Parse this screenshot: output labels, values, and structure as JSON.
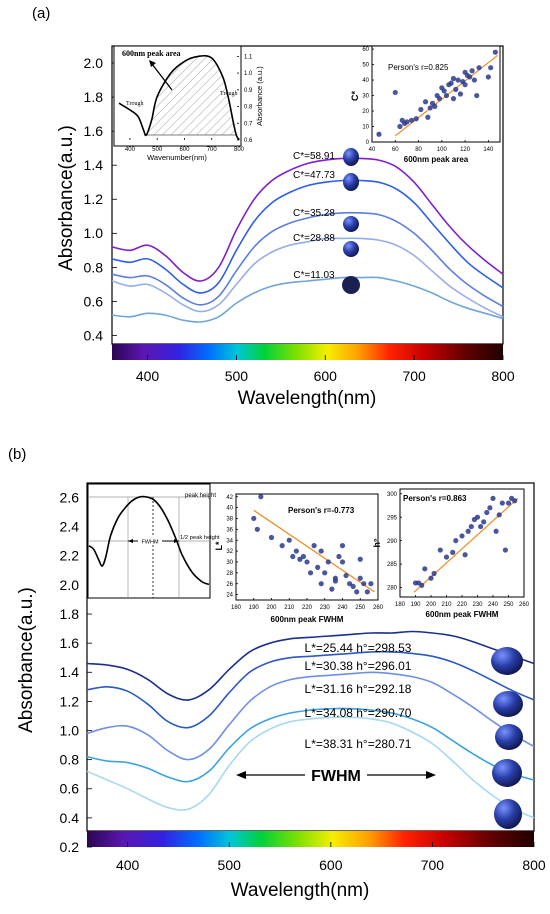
{
  "panel_a": {
    "label": "(a)",
    "tick_texts": {
      "main_x": [
        "400",
        "500",
        "600",
        "700",
        "800"
      ],
      "main_y": [
        "0.4",
        "0.6",
        "0.8",
        "1.0",
        "1.2",
        "1.4",
        "1.6",
        "1.8",
        "2.0"
      ]
    },
    "inset_left": {
      "xlabel": "Wavenumber(nm)",
      "ylabel": "Absorbance (a.u.)",
      "x_ticks": [
        "400",
        "500",
        "600",
        "700",
        "800"
      ],
      "y_ticks": [
        "0.6",
        "0.7",
        "0.8",
        "0.9",
        "1.0",
        "1.1"
      ],
      "area_label": "600nm peak area",
      "trough_left": "Trough",
      "trough_right": "Trough"
    },
    "inset_right": {
      "xlabel": "600nm peak area",
      "ylabel": "C*",
      "annotation": "Person's r=0.825",
      "x_ticks": [
        "40",
        "60",
        "80",
        "100",
        "120",
        "140"
      ],
      "y_ticks": [
        "0",
        "10",
        "20",
        "30",
        "40",
        "50",
        "60"
      ]
    }
  },
  "panel_b": {
    "label": "(b)",
    "tick_texts": {
      "main_x": [
        "400",
        "500",
        "600",
        "700",
        "800"
      ],
      "main_y": [
        "0.2",
        "0.4",
        "0.6",
        "0.8",
        "1.0",
        "1.2",
        "1.4",
        "1.6",
        "1.8",
        "2.0",
        "2.2",
        "2.4",
        "2.6"
      ]
    },
    "fwhm_label": "FWHM",
    "inset_left": {
      "fwhm_small": "FWHM",
      "peak_height": "peak height",
      "half_peak_height": "1/2 peak height"
    },
    "inset_mid": {
      "xlabel": "600nm peak FWHM",
      "ylabel": "L*",
      "annotation": "Person's r=-0.773",
      "x_ticks": [
        "180",
        "190",
        "200",
        "210",
        "220",
        "230",
        "240",
        "250",
        "260"
      ],
      "y_ticks": [
        "24",
        "26",
        "28",
        "30",
        "32",
        "34",
        "36",
        "38",
        "40",
        "42"
      ]
    },
    "inset_right": {
      "xlabel": "600nm peak FWHM",
      "ylabel": "h°",
      "annotation": "Person's r=0.863",
      "x_ticks": [
        "180",
        "190",
        "200",
        "210",
        "220",
        "230",
        "240",
        "250",
        "260"
      ],
      "y_ticks": [
        "280",
        "285",
        "290",
        "295",
        "300"
      ]
    }
  },
  "chart_data": [
    {
      "panel": "(a)",
      "type": "line",
      "xlabel": "Wavelength(nm)",
      "ylabel": "Absorbance(a.u.)",
      "xlim": [
        360,
        800
      ],
      "ylim": [
        0.35,
        2.1
      ],
      "series": [
        {
          "name": "C*=58.91",
          "color": "#7f1fcf",
          "x": [
            360,
            380,
            400,
            420,
            440,
            460,
            480,
            500,
            520,
            540,
            560,
            580,
            600,
            620,
            640,
            660,
            680,
            700,
            720,
            740,
            760,
            780,
            800
          ],
          "y": [
            0.92,
            0.9,
            0.93,
            0.87,
            0.77,
            0.72,
            0.8,
            1.02,
            1.2,
            1.31,
            1.37,
            1.41,
            1.43,
            1.44,
            1.44,
            1.43,
            1.39,
            1.3,
            1.17,
            1.04,
            0.93,
            0.84,
            0.76
          ]
        },
        {
          "name": "C*=47.73",
          "color": "#2f5fe6",
          "x": [
            360,
            380,
            400,
            420,
            440,
            460,
            480,
            500,
            520,
            540,
            560,
            580,
            600,
            620,
            640,
            660,
            680,
            700,
            720,
            740,
            760,
            780,
            800
          ],
          "y": [
            0.85,
            0.83,
            0.85,
            0.79,
            0.7,
            0.65,
            0.71,
            0.9,
            1.07,
            1.18,
            1.24,
            1.28,
            1.3,
            1.31,
            1.31,
            1.3,
            1.26,
            1.18,
            1.06,
            0.94,
            0.83,
            0.75,
            0.68
          ]
        },
        {
          "name": "C*=35.28",
          "color": "#5b7fe0",
          "x": [
            360,
            380,
            400,
            420,
            440,
            460,
            480,
            500,
            520,
            540,
            560,
            580,
            600,
            620,
            640,
            660,
            680,
            700,
            720,
            740,
            760,
            780,
            800
          ],
          "y": [
            0.76,
            0.74,
            0.75,
            0.7,
            0.62,
            0.58,
            0.63,
            0.78,
            0.92,
            1.01,
            1.06,
            1.09,
            1.11,
            1.12,
            1.12,
            1.11,
            1.07,
            1.0,
            0.9,
            0.79,
            0.7,
            0.63,
            0.57
          ]
        },
        {
          "name": "C*=28.88",
          "color": "#98aeea",
          "x": [
            360,
            380,
            400,
            420,
            440,
            460,
            480,
            500,
            520,
            540,
            560,
            580,
            600,
            620,
            640,
            660,
            680,
            700,
            720,
            740,
            760,
            780,
            800
          ],
          "y": [
            0.72,
            0.69,
            0.7,
            0.65,
            0.58,
            0.54,
            0.58,
            0.7,
            0.82,
            0.89,
            0.93,
            0.95,
            0.97,
            0.97,
            0.97,
            0.96,
            0.93,
            0.87,
            0.78,
            0.69,
            0.62,
            0.56,
            0.51
          ]
        },
        {
          "name": "C*=11.03",
          "color": "#6fa6d9",
          "x": [
            360,
            380,
            400,
            420,
            440,
            460,
            480,
            500,
            520,
            540,
            560,
            580,
            600,
            620,
            640,
            660,
            680,
            700,
            720,
            740,
            760,
            780,
            800
          ],
          "y": [
            0.52,
            0.51,
            0.53,
            0.52,
            0.49,
            0.48,
            0.51,
            0.59,
            0.65,
            0.69,
            0.71,
            0.72,
            0.73,
            0.74,
            0.74,
            0.74,
            0.72,
            0.69,
            0.65,
            0.6,
            0.56,
            0.53,
            0.5
          ]
        }
      ]
    },
    {
      "panel": "(a) inset left",
      "type": "line",
      "xlabel": "Wavenumber(nm)",
      "ylabel": "Absorbance (a.u.)",
      "xlim": [
        360,
        800
      ],
      "ylim": [
        0.6,
        1.15
      ],
      "series": [
        {
          "x": [
            360,
            400,
            430,
            450,
            460,
            480,
            500,
            550,
            600,
            650,
            700,
            740,
            760,
            780,
            790,
            800
          ],
          "y": [
            0.82,
            0.78,
            0.74,
            0.66,
            0.63,
            0.72,
            0.86,
            1.0,
            1.07,
            1.1,
            1.09,
            0.98,
            0.86,
            0.7,
            0.63,
            0.6
          ]
        }
      ]
    },
    {
      "panel": "(a) inset right",
      "type": "scatter",
      "xlabel": "600nm peak area",
      "ylabel": "C*",
      "annotation": "Person's r=0.825",
      "xlim": [
        40,
        150
      ],
      "ylim": [
        0,
        62
      ],
      "fit_line": [
        [
          60,
          4
        ],
        [
          148,
          56
        ]
      ],
      "x": [
        46,
        60,
        64,
        66,
        68,
        70,
        74,
        78,
        82,
        86,
        88,
        90,
        92,
        94,
        96,
        98,
        100,
        102,
        104,
        106,
        108,
        110,
        110,
        112,
        114,
        116,
        118,
        120,
        120,
        122,
        124,
        126,
        128,
        130,
        132,
        140,
        142,
        146
      ],
      "y": [
        5,
        32,
        10,
        14,
        12,
        13,
        14,
        15,
        21,
        26,
        16,
        22,
        25,
        23,
        30,
        28,
        35,
        33,
        30,
        37,
        38,
        41,
        28,
        34,
        40,
        31,
        39,
        45,
        37,
        43,
        42,
        46,
        40,
        30,
        48,
        42,
        48,
        58
      ]
    },
    {
      "panel": "(b)",
      "type": "line",
      "xlabel": "Wavelength(nm)",
      "ylabel": "Absorbance(a.u.)",
      "xlim": [
        360,
        800
      ],
      "ylim": [
        0.2,
        2.7
      ],
      "series": [
        {
          "name": "L*=25.44  h°=298.53",
          "color": "#1a2f8f",
          "x": [
            360,
            380,
            400,
            420,
            440,
            460,
            480,
            500,
            520,
            540,
            560,
            580,
            600,
            620,
            640,
            660,
            680,
            700,
            720,
            740,
            760,
            780,
            800
          ],
          "y": [
            1.46,
            1.45,
            1.42,
            1.35,
            1.25,
            1.21,
            1.28,
            1.42,
            1.54,
            1.6,
            1.63,
            1.64,
            1.65,
            1.66,
            1.67,
            1.67,
            1.68,
            1.67,
            1.65,
            1.61,
            1.56,
            1.51,
            1.46
          ]
        },
        {
          "name": "L*=30.38  h°=296.01",
          "color": "#2a58c4",
          "x": [
            360,
            380,
            400,
            420,
            440,
            460,
            480,
            500,
            520,
            540,
            560,
            580,
            600,
            620,
            640,
            660,
            680,
            700,
            720,
            740,
            760,
            780,
            800
          ],
          "y": [
            1.28,
            1.3,
            1.27,
            1.18,
            1.06,
            1.02,
            1.1,
            1.26,
            1.4,
            1.47,
            1.5,
            1.51,
            1.52,
            1.53,
            1.54,
            1.54,
            1.53,
            1.51,
            1.47,
            1.41,
            1.34,
            1.27,
            1.21
          ]
        },
        {
          "name": "L*=31.16  h°=292.18",
          "color": "#6f8fe3",
          "x": [
            360,
            380,
            400,
            420,
            440,
            460,
            480,
            500,
            520,
            540,
            560,
            580,
            600,
            620,
            640,
            660,
            680,
            700,
            720,
            740,
            760,
            780,
            800
          ],
          "y": [
            0.98,
            1.02,
            1.03,
            0.97,
            0.86,
            0.8,
            0.87,
            1.04,
            1.2,
            1.3,
            1.35,
            1.37,
            1.38,
            1.39,
            1.4,
            1.39,
            1.37,
            1.33,
            1.25,
            1.16,
            1.06,
            0.97,
            0.89
          ]
        },
        {
          "name": "L*=34.08  h°=290.70",
          "color": "#3aa2df",
          "x": [
            360,
            380,
            400,
            420,
            440,
            460,
            480,
            500,
            520,
            540,
            560,
            580,
            600,
            620,
            640,
            660,
            680,
            700,
            720,
            740,
            760,
            780,
            800
          ],
          "y": [
            0.82,
            0.79,
            0.78,
            0.74,
            0.68,
            0.65,
            0.72,
            0.88,
            1.01,
            1.08,
            1.12,
            1.14,
            1.15,
            1.15,
            1.14,
            1.12,
            1.08,
            1.02,
            0.93,
            0.84,
            0.76,
            0.7,
            0.66
          ]
        },
        {
          "name": "L*=38.31  h°=280.71",
          "color": "#a6d9f2",
          "x": [
            360,
            380,
            400,
            420,
            440,
            460,
            480,
            500,
            520,
            540,
            560,
            580,
            600,
            620,
            640,
            660,
            680,
            700,
            720,
            740,
            760,
            780,
            800
          ],
          "y": [
            0.72,
            0.66,
            0.6,
            0.53,
            0.47,
            0.46,
            0.56,
            0.76,
            0.92,
            1.01,
            1.06,
            1.08,
            1.09,
            1.09,
            1.08,
            1.05,
            0.99,
            0.91,
            0.79,
            0.66,
            0.55,
            0.46,
            0.4
          ]
        }
      ]
    },
    {
      "panel": "(b) inset left",
      "type": "line",
      "series": [
        {
          "x": [
            0.0,
            0.04,
            0.08,
            0.11,
            0.14,
            0.18,
            0.24,
            0.3,
            0.36,
            0.42,
            0.48,
            0.54,
            0.6,
            0.66,
            0.72,
            0.78,
            0.86,
            0.94,
            1.0
          ],
          "y": [
            0.47,
            0.43,
            0.32,
            0.25,
            0.35,
            0.58,
            0.77,
            0.88,
            0.96,
            1.0,
            1.0,
            0.97,
            0.88,
            0.74,
            0.56,
            0.36,
            0.18,
            0.08,
            0.05
          ]
        }
      ]
    },
    {
      "panel": "(b) inset mid",
      "type": "scatter",
      "xlabel": "600nm peak FWHM",
      "ylabel": "L*",
      "annotation": "Person's r=-0.773",
      "xlim": [
        180,
        260
      ],
      "ylim": [
        23,
        42.5
      ],
      "fit_line": [
        [
          190,
          39.5
        ],
        [
          258,
          24.5
        ]
      ],
      "x": [
        190,
        194,
        192,
        200,
        206,
        210,
        212,
        214,
        216,
        218,
        220,
        222,
        224,
        226,
        228,
        228,
        230,
        232,
        234,
        236,
        236,
        238,
        240,
        240,
        242,
        244,
        246,
        248,
        250,
        250,
        252,
        254,
        256
      ],
      "y": [
        38,
        42,
        36,
        34.5,
        33,
        34,
        31,
        32,
        30.5,
        31,
        30,
        28,
        33,
        29,
        32,
        26,
        28,
        30,
        25,
        27,
        26.5,
        31,
        30,
        33,
        27.5,
        26,
        25.5,
        24.5,
        27,
        30.5,
        26,
        24.5,
        26
      ]
    },
    {
      "panel": "(b) inset right",
      "type": "scatter",
      "xlabel": "600nm peak FWHM",
      "ylabel": "h°",
      "annotation": "Person's r=0.863",
      "xlim": [
        180,
        260
      ],
      "ylim": [
        278,
        301
      ],
      "fit_line": [
        [
          189,
          279
        ],
        [
          256,
          299
        ]
      ],
      "x": [
        190,
        192,
        194,
        196,
        200,
        202,
        206,
        210,
        214,
        216,
        220,
        222,
        224,
        226,
        228,
        230,
        232,
        234,
        236,
        238,
        240,
        242,
        244,
        246,
        248,
        250,
        252,
        254
      ],
      "y": [
        281,
        281,
        280.5,
        284,
        282,
        283,
        288,
        286.5,
        287.5,
        290,
        291,
        287,
        292,
        293,
        294.5,
        295,
        293,
        294,
        296,
        297,
        299,
        292,
        295.5,
        298,
        288,
        298,
        299,
        298.5
      ]
    }
  ]
}
